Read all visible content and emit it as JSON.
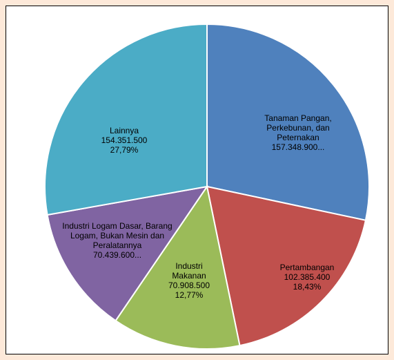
{
  "chart_data": {
    "type": "pie",
    "categories": [
      "Tanaman Pangan, Perkebunan, dan Peternakan",
      "Pertambangan",
      "Industri Makanan",
      "Industri Logam Dasar, Barang Logam, Bukan Mesin dan Peralatannya",
      "Lainnya"
    ],
    "values": [
      157348900,
      102385400,
      70908500,
      70439600,
      154351500
    ],
    "value_labels": [
      "157.348.900...",
      "102.385.400",
      "70.908.500",
      "70.439.600...",
      "154.351.500"
    ],
    "percentages": [
      null,
      18.43,
      12.77,
      null,
      27.79
    ],
    "percentage_labels": [
      null,
      "18,43%",
      "12,77%",
      null,
      "27,79%"
    ],
    "colors": [
      "#4f81bd",
      "#c0504d",
      "#9bbb59",
      "#8064a2",
      "#4bacc6"
    ]
  }
}
